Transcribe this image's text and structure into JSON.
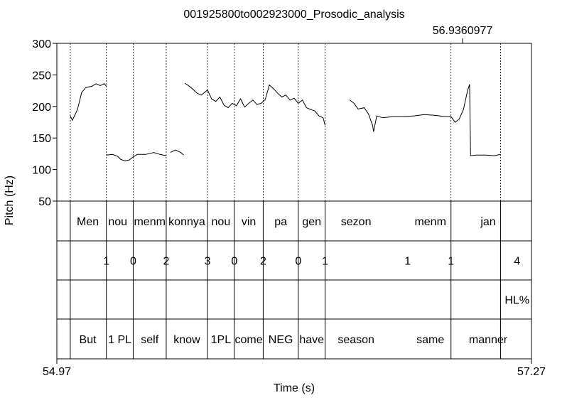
{
  "chart_data": {
    "type": "line",
    "title": "001925800to002923000_Prosodic_analysis",
    "cursor_time_label": "56.9360977",
    "xlabel": "Time (s)",
    "ylabel": "Pitch (Hz)",
    "x_tick_labels": [
      "54.97",
      "57.27"
    ],
    "xlim": [
      54.97,
      57.27
    ],
    "ylim": [
      50,
      300
    ],
    "y_ticks": [
      50,
      100,
      150,
      200,
      250,
      300
    ],
    "y_tick_labels": [
      "50",
      "100",
      "150",
      "200",
      "250",
      "300"
    ],
    "cursor_time": 56.9361,
    "boundaries": [
      55.035,
      55.21,
      55.34,
      55.5,
      55.7,
      55.83,
      55.97,
      56.14,
      56.27,
      56.88,
      57.12
    ],
    "pitch_segments": [
      {
        "name": "seg1",
        "points": [
          [
            55.035,
            185
          ],
          [
            55.045,
            178
          ],
          [
            55.07,
            195
          ],
          [
            55.09,
            222
          ],
          [
            55.11,
            230
          ],
          [
            55.14,
            232
          ],
          [
            55.16,
            236
          ],
          [
            55.18,
            233
          ],
          [
            55.2,
            236
          ],
          [
            55.21,
            232
          ]
        ]
      },
      {
        "name": "seg2",
        "points": [
          [
            55.21,
            123
          ],
          [
            55.24,
            124
          ],
          [
            55.265,
            121
          ],
          [
            55.28,
            116
          ],
          [
            55.3,
            114
          ],
          [
            55.32,
            115
          ],
          [
            55.34,
            120
          ],
          [
            55.36,
            124
          ],
          [
            55.4,
            124
          ],
          [
            55.44,
            127
          ],
          [
            55.47,
            124
          ],
          [
            55.5,
            122
          ]
        ]
      },
      {
        "name": "seg3",
        "points": [
          [
            55.52,
            127
          ],
          [
            55.545,
            131
          ],
          [
            55.57,
            127
          ],
          [
            55.585,
            123
          ]
        ]
      },
      {
        "name": "seg4",
        "points": [
          [
            55.59,
            237
          ],
          [
            55.62,
            230
          ],
          [
            55.65,
            221
          ],
          [
            55.67,
            218
          ],
          [
            55.7,
            226
          ],
          [
            55.72,
            212
          ],
          [
            55.74,
            208
          ],
          [
            55.76,
            215
          ],
          [
            55.78,
            202
          ],
          [
            55.8,
            198
          ],
          [
            55.82,
            205
          ],
          [
            55.84,
            201
          ],
          [
            55.86,
            212
          ],
          [
            55.88,
            199
          ],
          [
            55.9,
            205
          ],
          [
            55.92,
            210
          ],
          [
            55.94,
            203
          ],
          [
            55.96,
            205
          ],
          [
            55.98,
            211
          ],
          [
            56.0,
            234
          ],
          [
            56.02,
            228
          ],
          [
            56.04,
            221
          ],
          [
            56.06,
            215
          ],
          [
            56.08,
            218
          ],
          [
            56.1,
            210
          ],
          [
            56.12,
            213
          ],
          [
            56.14,
            205
          ],
          [
            56.16,
            210
          ],
          [
            56.18,
            198
          ],
          [
            56.2,
            195
          ],
          [
            56.22,
            193
          ],
          [
            56.24,
            185
          ],
          [
            56.26,
            182
          ],
          [
            56.27,
            170
          ]
        ]
      },
      {
        "name": "seg5",
        "points": [
          [
            56.39,
            210
          ],
          [
            56.41,
            205
          ],
          [
            56.43,
            196
          ],
          [
            56.46,
            198
          ],
          [
            56.48,
            188
          ],
          [
            56.5,
            170
          ],
          [
            56.505,
            160
          ],
          [
            56.52,
            185
          ],
          [
            56.55,
            182
          ],
          [
            56.6,
            184
          ],
          [
            56.65,
            184
          ],
          [
            56.7,
            185
          ],
          [
            56.75,
            187
          ],
          [
            56.8,
            186
          ],
          [
            56.85,
            184
          ],
          [
            56.88,
            184
          ],
          [
            56.9,
            175
          ],
          [
            56.92,
            180
          ],
          [
            56.94,
            195
          ],
          [
            56.96,
            225
          ],
          [
            56.97,
            235
          ],
          [
            56.975,
            122
          ],
          [
            57.0,
            123
          ],
          [
            57.05,
            123
          ],
          [
            57.09,
            122
          ],
          [
            57.12,
            124
          ]
        ]
      }
    ],
    "tiers": [
      {
        "name": "words",
        "labels": [
          {
            "text": "Men",
            "x": 55.12
          },
          {
            "text": "nou",
            "x": 55.265
          },
          {
            "text": "menm",
            "x": 55.42
          },
          {
            "text": "konnya",
            "x": 55.6
          },
          {
            "text": "nou",
            "x": 55.765
          },
          {
            "text": "vin",
            "x": 55.9
          },
          {
            "text": "pa",
            "x": 56.055
          },
          {
            "text": "gen",
            "x": 56.205
          },
          {
            "text": "sezon",
            "x": 56.42
          },
          {
            "text": "menm",
            "x": 56.78
          },
          {
            "text": "jan",
            "x": 57.06
          }
        ]
      },
      {
        "name": "tones",
        "labels": [
          {
            "text": "1",
            "x": 55.21
          },
          {
            "text": "0",
            "x": 55.34
          },
          {
            "text": "2",
            "x": 55.5
          },
          {
            "text": "3",
            "x": 55.7
          },
          {
            "text": "0",
            "x": 55.83
          },
          {
            "text": "2",
            "x": 55.97
          },
          {
            "text": "0",
            "x": 56.14
          },
          {
            "text": "1",
            "x": 56.27
          },
          {
            "text": "1",
            "x": 56.67
          },
          {
            "text": "1",
            "x": 56.88
          },
          {
            "text": "4",
            "x": 57.2
          }
        ]
      },
      {
        "name": "boundary-tones",
        "labels": [
          {
            "text": "HL%",
            "x": 57.2
          }
        ]
      },
      {
        "name": "gloss",
        "labels": [
          {
            "text": "But",
            "x": 55.12
          },
          {
            "text": "1 PL",
            "x": 55.275
          },
          {
            "text": "self",
            "x": 55.42
          },
          {
            "text": "know",
            "x": 55.6
          },
          {
            "text": "1PL",
            "x": 55.765
          },
          {
            "text": "come",
            "x": 55.9
          },
          {
            "text": "NEG",
            "x": 56.055
          },
          {
            "text": "have",
            "x": 56.205
          },
          {
            "text": "season",
            "x": 56.42
          },
          {
            "text": "same",
            "x": 56.78
          },
          {
            "text": "manner",
            "x": 57.06
          }
        ]
      }
    ]
  }
}
